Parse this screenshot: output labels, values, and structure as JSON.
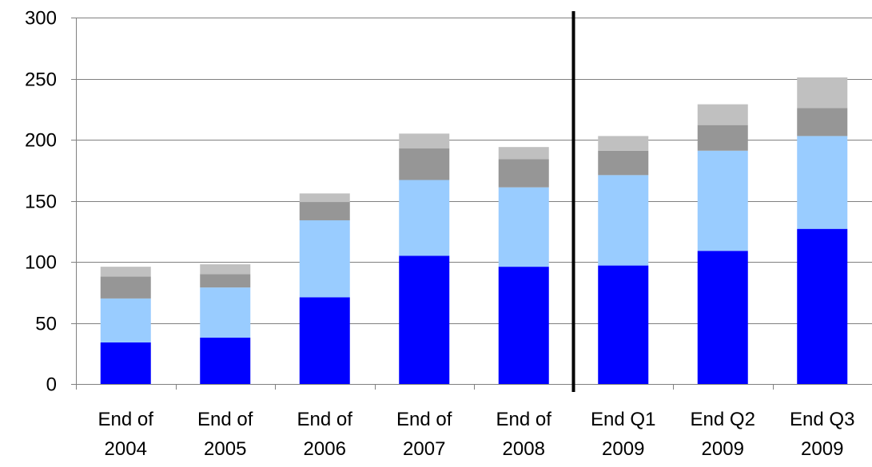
{
  "chart_data": {
    "type": "bar",
    "stacked": true,
    "categories": [
      [
        "End of",
        "2004"
      ],
      [
        "End of",
        "2005"
      ],
      [
        "End of",
        "2006"
      ],
      [
        "End of",
        "2007"
      ],
      [
        "End of",
        "2008"
      ],
      [
        "End Q1",
        "2009"
      ],
      [
        "End Q2",
        "2009"
      ],
      [
        "End Q3",
        "2009"
      ]
    ],
    "series": [
      {
        "color": "#0000ff",
        "values": [
          34,
          38,
          71,
          105,
          96,
          97,
          109,
          127
        ]
      },
      {
        "color": "#99ccff",
        "values": [
          36,
          41,
          63,
          62,
          65,
          74,
          82,
          76
        ]
      },
      {
        "color": "#969696",
        "values": [
          18,
          11,
          15,
          26,
          23,
          20,
          21,
          23
        ]
      },
      {
        "color": "#c0c0c0",
        "values": [
          8,
          8,
          7,
          12,
          10,
          12,
          17,
          25
        ]
      }
    ],
    "ylim": [
      0,
      300
    ],
    "yticks": [
      0,
      50,
      100,
      150,
      200,
      250,
      300
    ],
    "grid": true,
    "legend": "none",
    "divider_after_category_index": 4,
    "divider_color": "#000000",
    "gridline_color": "#808080",
    "title": "",
    "xlabel": "",
    "ylabel": ""
  }
}
